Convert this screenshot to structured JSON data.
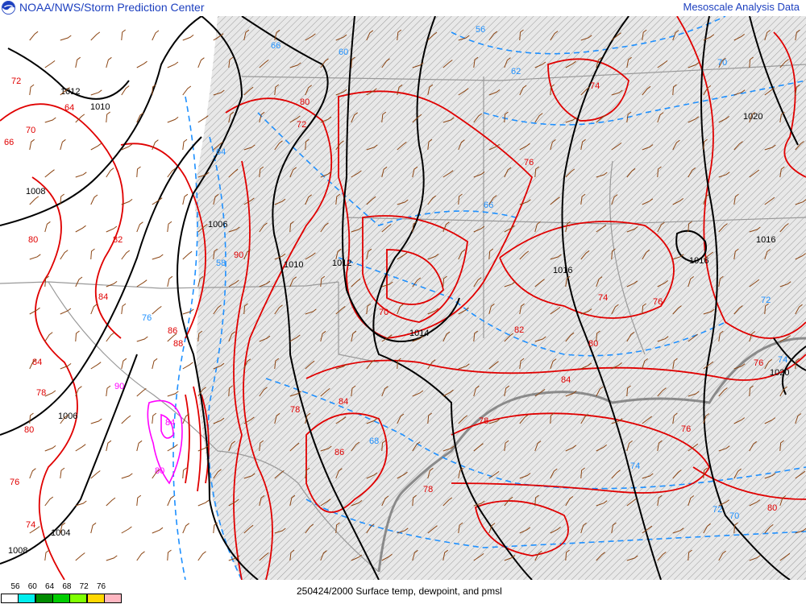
{
  "header": {
    "organization": "NOAA/NWS/Storm Prediction Center",
    "product": "Mesoscale Analysis Data",
    "logo": "noaa-logo"
  },
  "legend": {
    "ticks": [
      "56",
      "60",
      "64",
      "68",
      "72",
      "76"
    ],
    "colors": [
      "#ffffff",
      "#00eeee",
      "#008b00",
      "#00cd00",
      "#7fff00",
      "#ffd700",
      "#ffb6c1"
    ]
  },
  "caption": "250424/2000 Surface temp, dewpoint, and pmsl",
  "map": {
    "colors": {
      "isobar": "#000000",
      "temperature": "#e00000",
      "dewpoint": "#1e90ff",
      "dewpoint_high": "#ff00ff",
      "wind_barb": "#8b4513",
      "borders": "#999999",
      "hatch_background": "#e0e0e0"
    },
    "isobar_labels": [
      "1012",
      "1010",
      "1008",
      "1006",
      "1006",
      "1004",
      "1008",
      "1010",
      "1012",
      "1014",
      "1016",
      "1016",
      "1016",
      "1020",
      "1020"
    ],
    "temperature_labels": [
      "72",
      "64",
      "70",
      "66",
      "80",
      "82",
      "84",
      "86",
      "88",
      "90",
      "84",
      "80",
      "78",
      "76",
      "74",
      "72",
      "70",
      "78",
      "80",
      "84",
      "86",
      "76",
      "74",
      "76",
      "78",
      "80",
      "82",
      "84",
      "76",
      "80",
      "74",
      "76",
      "78"
    ],
    "dewpoint_labels": [
      "56",
      "60",
      "58",
      "62",
      "64",
      "66",
      "68",
      "70",
      "72",
      "74",
      "76",
      "72",
      "70",
      "74",
      "66"
    ],
    "dewpoint_high_labels": [
      "90",
      "84",
      "80"
    ]
  }
}
